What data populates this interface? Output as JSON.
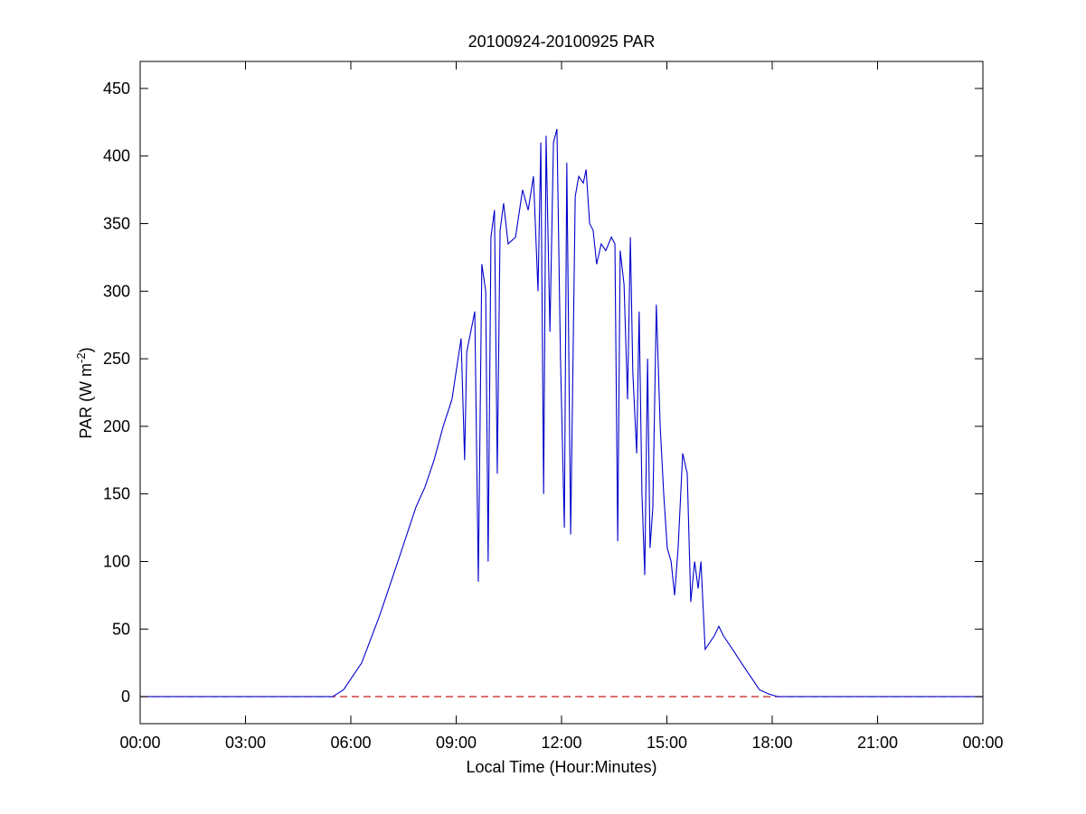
{
  "chart_data": {
    "type": "line",
    "title": "20100924-20100925 PAR",
    "xlabel": "Local Time (Hour:Minutes)",
    "ylabel": {
      "text": "PAR (W m",
      "sup": "-2",
      "end": ")"
    },
    "xlim": [
      0,
      24
    ],
    "ylim": [
      -20,
      470
    ],
    "xticks": [
      {
        "value": 0,
        "label": "00:00"
      },
      {
        "value": 3,
        "label": "03:00"
      },
      {
        "value": 6,
        "label": "06:00"
      },
      {
        "value": 9,
        "label": "09:00"
      },
      {
        "value": 12,
        "label": "12:00"
      },
      {
        "value": 15,
        "label": "15:00"
      },
      {
        "value": 18,
        "label": "18:00"
      },
      {
        "value": 21,
        "label": "21:00"
      },
      {
        "value": 24,
        "label": "00:00"
      }
    ],
    "yticks": [
      0,
      50,
      100,
      150,
      200,
      250,
      300,
      350,
      400,
      450
    ],
    "grid": false,
    "reference_line": {
      "value": 0,
      "color": "#c00000",
      "dash": true
    },
    "series": [
      {
        "color": "#0000cc",
        "x": [
          0,
          5.48,
          5.79,
          6.31,
          6.82,
          7.34,
          7.85,
          8.11,
          8.37,
          8.63,
          8.88,
          9.14,
          9.24,
          9.3,
          9.53,
          9.63,
          9.73,
          9.84,
          9.91,
          9.99,
          10.09,
          10.17,
          10.25,
          10.35,
          10.48,
          10.69,
          10.89,
          11.05,
          11.2,
          11.33,
          11.41,
          11.49,
          11.56,
          11.67,
          11.77,
          11.87,
          11.97,
          12.08,
          12.15,
          12.26,
          12.39,
          12.49,
          12.62,
          12.7,
          12.8,
          12.9,
          13.0,
          13.13,
          13.26,
          13.42,
          13.52,
          13.6,
          13.67,
          13.78,
          13.88,
          13.96,
          14.03,
          14.14,
          14.21,
          14.29,
          14.37,
          14.45,
          14.52,
          14.6,
          14.7,
          14.81,
          14.91,
          15.01,
          15.12,
          15.22,
          15.32,
          15.45,
          15.58,
          15.68,
          15.79,
          15.89,
          15.97,
          16.09,
          16.35,
          16.48,
          16.61,
          16.87,
          17.12,
          17.38,
          17.64,
          17.9,
          18.15,
          24
        ],
        "values": [
          0,
          0,
          5,
          25,
          60,
          100,
          140,
          155,
          175,
          200,
          220,
          265,
          175,
          255,
          285,
          85,
          320,
          300,
          100,
          340,
          360,
          165,
          345,
          365,
          335,
          340,
          375,
          360,
          385,
          300,
          410,
          150,
          415,
          270,
          410,
          420,
          250,
          125,
          395,
          120,
          370,
          385,
          380,
          390,
          350,
          345,
          320,
          335,
          330,
          340,
          335,
          115,
          330,
          305,
          220,
          340,
          240,
          180,
          285,
          150,
          90,
          250,
          110,
          140,
          290,
          200,
          150,
          110,
          100,
          75,
          110,
          180,
          165,
          70,
          100,
          80,
          100,
          35,
          45,
          52,
          45,
          35,
          25,
          15,
          5,
          2,
          0,
          0
        ]
      }
    ]
  }
}
